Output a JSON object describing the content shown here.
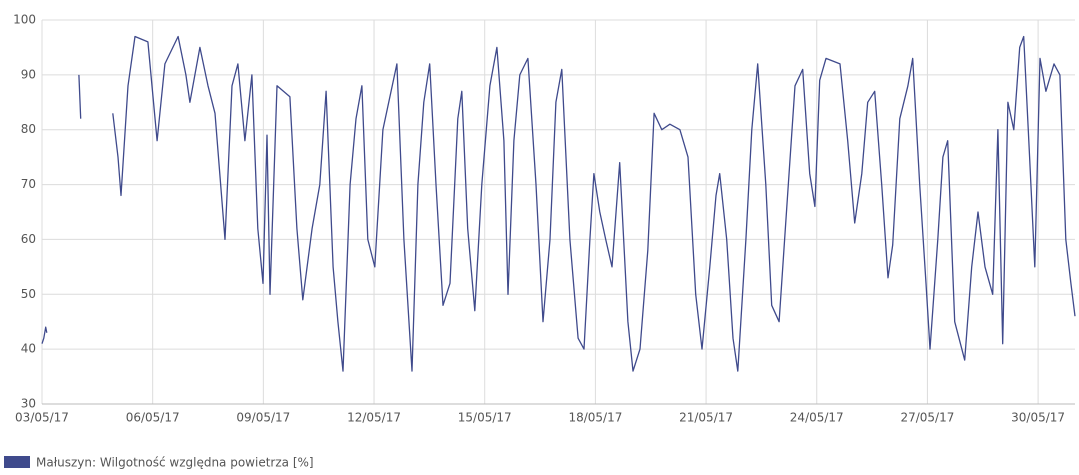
{
  "chart_data": {
    "type": "line",
    "x": [
      3.0,
      3.05,
      3.1,
      3.13,
      3.5,
      4.0,
      4.05,
      4.5,
      4.92,
      5.06,
      5.14,
      5.33,
      5.52,
      5.87,
      6.12,
      6.33,
      6.69,
      6.9,
      7.01,
      7.28,
      7.5,
      7.69,
      7.96,
      8.15,
      8.31,
      8.5,
      8.69,
      8.85,
      8.99,
      9.1,
      9.18,
      9.37,
      9.72,
      9.91,
      10.07,
      10.32,
      10.53,
      10.7,
      10.89,
      11.02,
      11.16,
      11.35,
      11.51,
      11.67,
      11.83,
      12.02,
      12.24,
      12.62,
      12.81,
      13.03,
      13.19,
      13.35,
      13.51,
      13.68,
      13.87,
      14.06,
      14.27,
      14.38,
      14.54,
      14.73,
      14.92,
      15.14,
      15.33,
      15.52,
      15.63,
      15.79,
      15.95,
      16.17,
      16.39,
      16.58,
      16.77,
      16.93,
      17.09,
      17.31,
      17.53,
      17.69,
      17.85,
      17.96,
      18.12,
      18.28,
      18.45,
      18.66,
      18.88,
      19.02,
      19.21,
      19.42,
      19.59,
      19.8,
      20.02,
      20.29,
      20.51,
      20.72,
      20.89,
      21.1,
      21.27,
      21.37,
      21.56,
      21.73,
      21.86,
      22.08,
      22.24,
      22.4,
      22.62,
      22.78,
      22.98,
      23.2,
      23.41,
      23.62,
      23.81,
      23.95,
      24.08,
      24.25,
      24.63,
      24.84,
      25.03,
      25.22,
      25.38,
      25.57,
      25.76,
      25.93,
      26.06,
      26.25,
      26.47,
      26.6,
      26.79,
      26.96,
      27.07,
      27.28,
      27.42,
      27.55,
      27.74,
      28.01,
      28.2,
      28.37,
      28.56,
      28.77,
      28.91,
      29.04,
      29.18,
      29.34,
      29.5,
      29.61,
      29.77,
      29.91,
      30.05,
      30.21,
      30.43,
      30.59,
      30.75,
      30.89,
      31.0
    ],
    "series": [
      {
        "name": "Małuszyn: Wilgotność względna powietrza [%]",
        "color": "#3f4a8c",
        "values": [
          41,
          42,
          44,
          43,
          null,
          90,
          82,
          null,
          83,
          75,
          68,
          88,
          97,
          96,
          78,
          92,
          97,
          90,
          85,
          95,
          88,
          83,
          60,
          88,
          92,
          78,
          90,
          62,
          52,
          79,
          50,
          88,
          86,
          62,
          49,
          62,
          70,
          87,
          55,
          45,
          36,
          70,
          82,
          88,
          60,
          55,
          80,
          92,
          60,
          36,
          70,
          85,
          92,
          70,
          48,
          52,
          82,
          87,
          62,
          47,
          70,
          88,
          95,
          78,
          50,
          78,
          90,
          93,
          70,
          45,
          60,
          85,
          91,
          60,
          42,
          40,
          60,
          72,
          65,
          60,
          55,
          74,
          45,
          36,
          40,
          58,
          83,
          80,
          81,
          80,
          75,
          50,
          40,
          55,
          68,
          72,
          60,
          42,
          36,
          60,
          80,
          92,
          70,
          48,
          45,
          67,
          88,
          91,
          72,
          66,
          89,
          93,
          92,
          78,
          63,
          72,
          85,
          87,
          70,
          53,
          59,
          82,
          88,
          93,
          70,
          52,
          40,
          60,
          75,
          78,
          45,
          38,
          55,
          65,
          55,
          50,
          80,
          41,
          85,
          80,
          95,
          97,
          75,
          55,
          93,
          87,
          92,
          90,
          60,
          52,
          46
        ]
      }
    ],
    "xlim": [
      3,
      31
    ],
    "xticks": [
      {
        "value": 3,
        "label": "03/05/17"
      },
      {
        "value": 6,
        "label": "06/05/17"
      },
      {
        "value": 9,
        "label": "09/05/17"
      },
      {
        "value": 12,
        "label": "12/05/17"
      },
      {
        "value": 15,
        "label": "15/05/17"
      },
      {
        "value": 18,
        "label": "18/05/17"
      },
      {
        "value": 21,
        "label": "21/05/17"
      },
      {
        "value": 24,
        "label": "24/05/17"
      },
      {
        "value": 27,
        "label": "27/05/17"
      },
      {
        "value": 30,
        "label": "30/05/17"
      }
    ],
    "ylim": [
      30,
      100
    ],
    "yticks": [
      30,
      40,
      50,
      60,
      70,
      80,
      90,
      100
    ],
    "grid": true
  }
}
